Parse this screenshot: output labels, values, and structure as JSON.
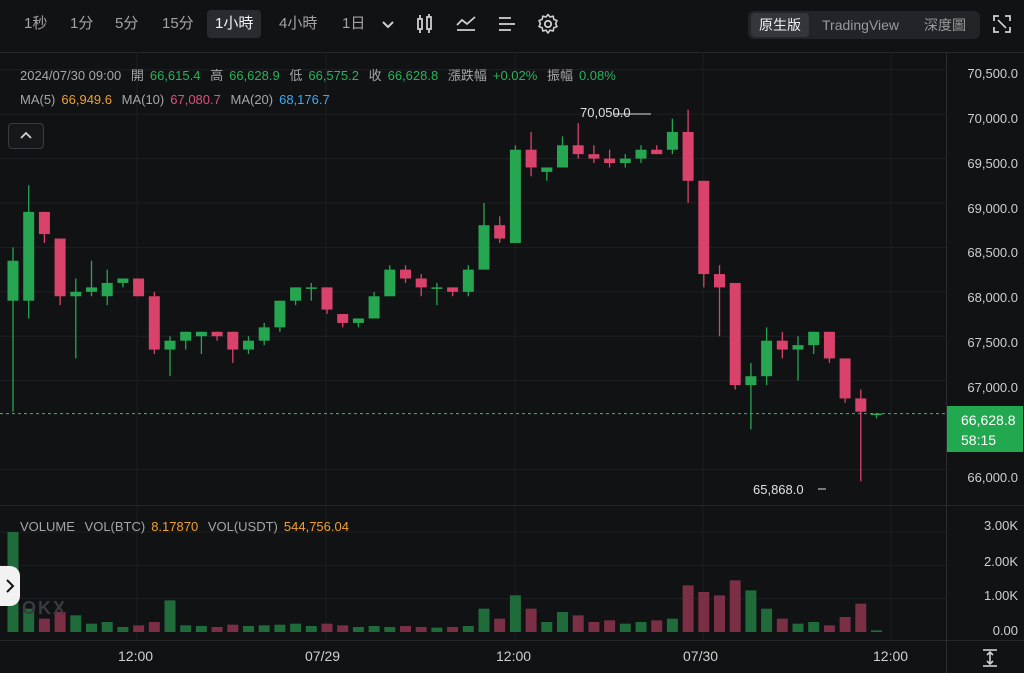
{
  "toolbar": {
    "timeframes": [
      "1秒",
      "1分",
      "5分",
      "15分",
      "1小時",
      "4小時",
      "1日"
    ],
    "active_timeframe": "1小時",
    "views": [
      "原生版",
      "TradingView",
      "深度圖"
    ],
    "active_view": "原生版"
  },
  "ohlc_legend": {
    "datetime": "2024/07/30 09:00",
    "open_label": "開",
    "open": "66,615.4",
    "high_label": "高",
    "high": "66,628.9",
    "low_label": "低",
    "low": "66,575.2",
    "close_label": "收",
    "close": "66,628.8",
    "change_label": "漲跌幅",
    "change": "+0.02%",
    "amplitude_label": "振幅",
    "amplitude": "0.08%"
  },
  "ma_legend": {
    "ma5_label": "MA(5)",
    "ma5": "66,949.6",
    "ma10_label": "MA(10)",
    "ma10": "67,080.7",
    "ma20_label": "MA(20)",
    "ma20": "68,176.7"
  },
  "volume_legend": {
    "title": "VOLUME",
    "btc_label": "VOL(BTC)",
    "btc": "8.17870",
    "usdt_label": "VOL(USDT)",
    "usdt": "544,756.04"
  },
  "price_axis": [
    "70,500.0",
    "70,000.0",
    "69,500.0",
    "69,000.0",
    "68,500.0",
    "68,000.0",
    "67,500.0",
    "67,000.0",
    "66,000.0"
  ],
  "volume_axis": [
    "3.00K",
    "2.00K",
    "1.00K",
    "0.00"
  ],
  "time_axis": [
    "12:00",
    "07/29",
    "12:00",
    "07/30",
    "12:00"
  ],
  "current_price": {
    "price": "66,628.8",
    "countdown": "58:15"
  },
  "annotations": {
    "high": "70,050.0",
    "low": "65,868.0"
  },
  "watermark": "OKX",
  "colors": {
    "up": "#26a651",
    "down": "#d9436b",
    "background": "#111214",
    "last_price_line": "#2fbf5f"
  },
  "chart_data": {
    "type": "candlestick",
    "interval": "1h",
    "price_ylim": [
      65600,
      70700
    ],
    "volume_ylim": [
      0,
      3300
    ],
    "candles": [
      {
        "o": 67900,
        "h": 68500,
        "l": 66650,
        "c": 68350,
        "v": 3000
      },
      {
        "o": 67900,
        "h": 69200,
        "l": 67700,
        "c": 68900,
        "v": 700
      },
      {
        "o": 68900,
        "h": 68900,
        "l": 68550,
        "c": 68650,
        "v": 400
      },
      {
        "o": 68600,
        "h": 68600,
        "l": 67850,
        "c": 67950,
        "v": 600
      },
      {
        "o": 67950,
        "h": 68150,
        "l": 67250,
        "c": 68000,
        "v": 500
      },
      {
        "o": 68000,
        "h": 68350,
        "l": 67950,
        "c": 68050,
        "v": 250
      },
      {
        "o": 67950,
        "h": 68250,
        "l": 67850,
        "c": 68100,
        "v": 300
      },
      {
        "o": 68100,
        "h": 68150,
        "l": 68050,
        "c": 68150,
        "v": 150
      },
      {
        "o": 68150,
        "h": 68150,
        "l": 67950,
        "c": 67950,
        "v": 200
      },
      {
        "o": 67950,
        "h": 68000,
        "l": 67300,
        "c": 67350,
        "v": 300
      },
      {
        "o": 67350,
        "h": 67500,
        "l": 67050,
        "c": 67450,
        "v": 950
      },
      {
        "o": 67450,
        "h": 67550,
        "l": 67350,
        "c": 67550,
        "v": 200
      },
      {
        "o": 67500,
        "h": 67550,
        "l": 67300,
        "c": 67550,
        "v": 180
      },
      {
        "o": 67550,
        "h": 67550,
        "l": 67450,
        "c": 67500,
        "v": 150
      },
      {
        "o": 67550,
        "h": 67550,
        "l": 67200,
        "c": 67350,
        "v": 220
      },
      {
        "o": 67350,
        "h": 67500,
        "l": 67300,
        "c": 67450,
        "v": 180
      },
      {
        "o": 67450,
        "h": 67650,
        "l": 67400,
        "c": 67600,
        "v": 200
      },
      {
        "o": 67600,
        "h": 67900,
        "l": 67550,
        "c": 67900,
        "v": 220
      },
      {
        "o": 67900,
        "h": 68050,
        "l": 67850,
        "c": 68050,
        "v": 250
      },
      {
        "o": 68050,
        "h": 68100,
        "l": 67900,
        "c": 68050,
        "v": 180
      },
      {
        "o": 68050,
        "h": 68050,
        "l": 67750,
        "c": 67800,
        "v": 250
      },
      {
        "o": 67750,
        "h": 67750,
        "l": 67600,
        "c": 67650,
        "v": 200
      },
      {
        "o": 67650,
        "h": 67700,
        "l": 67600,
        "c": 67700,
        "v": 150
      },
      {
        "o": 67700,
        "h": 68000,
        "l": 67700,
        "c": 67950,
        "v": 180
      },
      {
        "o": 67950,
        "h": 68300,
        "l": 67950,
        "c": 68250,
        "v": 150
      },
      {
        "o": 68250,
        "h": 68300,
        "l": 68100,
        "c": 68150,
        "v": 180
      },
      {
        "o": 68150,
        "h": 68200,
        "l": 67950,
        "c": 68050,
        "v": 150
      },
      {
        "o": 68050,
        "h": 68100,
        "l": 67850,
        "c": 68050,
        "v": 130
      },
      {
        "o": 68050,
        "h": 68050,
        "l": 67950,
        "c": 68000,
        "v": 150
      },
      {
        "o": 68000,
        "h": 68300,
        "l": 67950,
        "c": 68250,
        "v": 180
      },
      {
        "o": 68250,
        "h": 69000,
        "l": 68250,
        "c": 68750,
        "v": 700
      },
      {
        "o": 68750,
        "h": 68850,
        "l": 68550,
        "c": 68600,
        "v": 400
      },
      {
        "o": 68550,
        "h": 69650,
        "l": 68550,
        "c": 69600,
        "v": 1100
      },
      {
        "o": 69600,
        "h": 69800,
        "l": 69300,
        "c": 69400,
        "v": 700
      },
      {
        "o": 69350,
        "h": 69400,
        "l": 69250,
        "c": 69400,
        "v": 300
      },
      {
        "o": 69400,
        "h": 69750,
        "l": 69400,
        "c": 69650,
        "v": 600
      },
      {
        "o": 69650,
        "h": 69900,
        "l": 69500,
        "c": 69550,
        "v": 500
      },
      {
        "o": 69550,
        "h": 69650,
        "l": 69450,
        "c": 69500,
        "v": 300
      },
      {
        "o": 69500,
        "h": 69600,
        "l": 69400,
        "c": 69450,
        "v": 350
      },
      {
        "o": 69450,
        "h": 69550,
        "l": 69400,
        "c": 69500,
        "v": 250
      },
      {
        "o": 69500,
        "h": 69650,
        "l": 69450,
        "c": 69600,
        "v": 300
      },
      {
        "o": 69600,
        "h": 69650,
        "l": 69550,
        "c": 69550,
        "v": 350
      },
      {
        "o": 69600,
        "h": 69950,
        "l": 69550,
        "c": 69800,
        "v": 400
      },
      {
        "o": 69800,
        "h": 70050,
        "l": 69000,
        "c": 69250,
        "v": 1400
      },
      {
        "o": 69250,
        "h": 69250,
        "l": 68050,
        "c": 68200,
        "v": 1200
      },
      {
        "o": 68200,
        "h": 68300,
        "l": 67500,
        "c": 68050,
        "v": 1100
      },
      {
        "o": 68100,
        "h": 68100,
        "l": 66900,
        "c": 66950,
        "v": 1550
      },
      {
        "o": 66950,
        "h": 67200,
        "l": 66450,
        "c": 67050,
        "v": 1250
      },
      {
        "o": 67050,
        "h": 67600,
        "l": 66950,
        "c": 67450,
        "v": 700
      },
      {
        "o": 67450,
        "h": 67550,
        "l": 67250,
        "c": 67350,
        "v": 400
      },
      {
        "o": 67350,
        "h": 67500,
        "l": 67000,
        "c": 67400,
        "v": 250
      },
      {
        "o": 67400,
        "h": 67550,
        "l": 67300,
        "c": 67550,
        "v": 300
      },
      {
        "o": 67550,
        "h": 67550,
        "l": 67200,
        "c": 67250,
        "v": 200
      },
      {
        "o": 67250,
        "h": 67250,
        "l": 66750,
        "c": 66800,
        "v": 450
      },
      {
        "o": 66800,
        "h": 66900,
        "l": 65868,
        "c": 66650,
        "v": 850
      },
      {
        "o": 66615,
        "h": 66629,
        "l": 66575,
        "c": 66629,
        "v": 50
      }
    ]
  }
}
